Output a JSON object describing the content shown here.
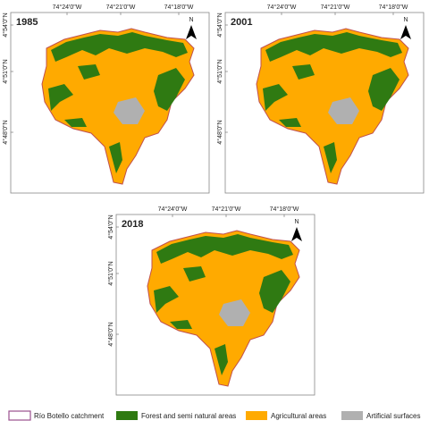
{
  "panels": [
    {
      "year": "1985",
      "x_labels": [
        "74°24'0\"W",
        "74°21'0\"W",
        "74°18'0\"W"
      ],
      "y_labels": [
        "4°54'0\"N",
        "4°51'0\"N",
        "4°48'0\"N"
      ],
      "north": "N"
    },
    {
      "year": "2001",
      "x_labels": [
        "74°24'0\"W",
        "74°21'0\"W",
        "74°18'0\"W"
      ],
      "y_labels": [
        "4°54'0\"N",
        "4°51'0\"N",
        "4°48'0\"N"
      ],
      "north": "N"
    },
    {
      "year": "2018",
      "x_labels": [
        "74°24'0\"W",
        "74°21'0\"W",
        "74°18'0\"W"
      ],
      "y_labels": [
        "4°54'0\"N",
        "4°51'0\"N",
        "4°48'0\"N"
      ],
      "north": "N"
    }
  ],
  "legend": [
    {
      "label": "Río Botello catchment",
      "color": "#9a4f8e",
      "outline": true
    },
    {
      "label": "Forest and semi natural areas",
      "color": "#2f7a12"
    },
    {
      "label": "Agricultural areas",
      "color": "#ffaa00"
    },
    {
      "label": "Artificial surfaces",
      "color": "#b0b0b0"
    }
  ]
}
